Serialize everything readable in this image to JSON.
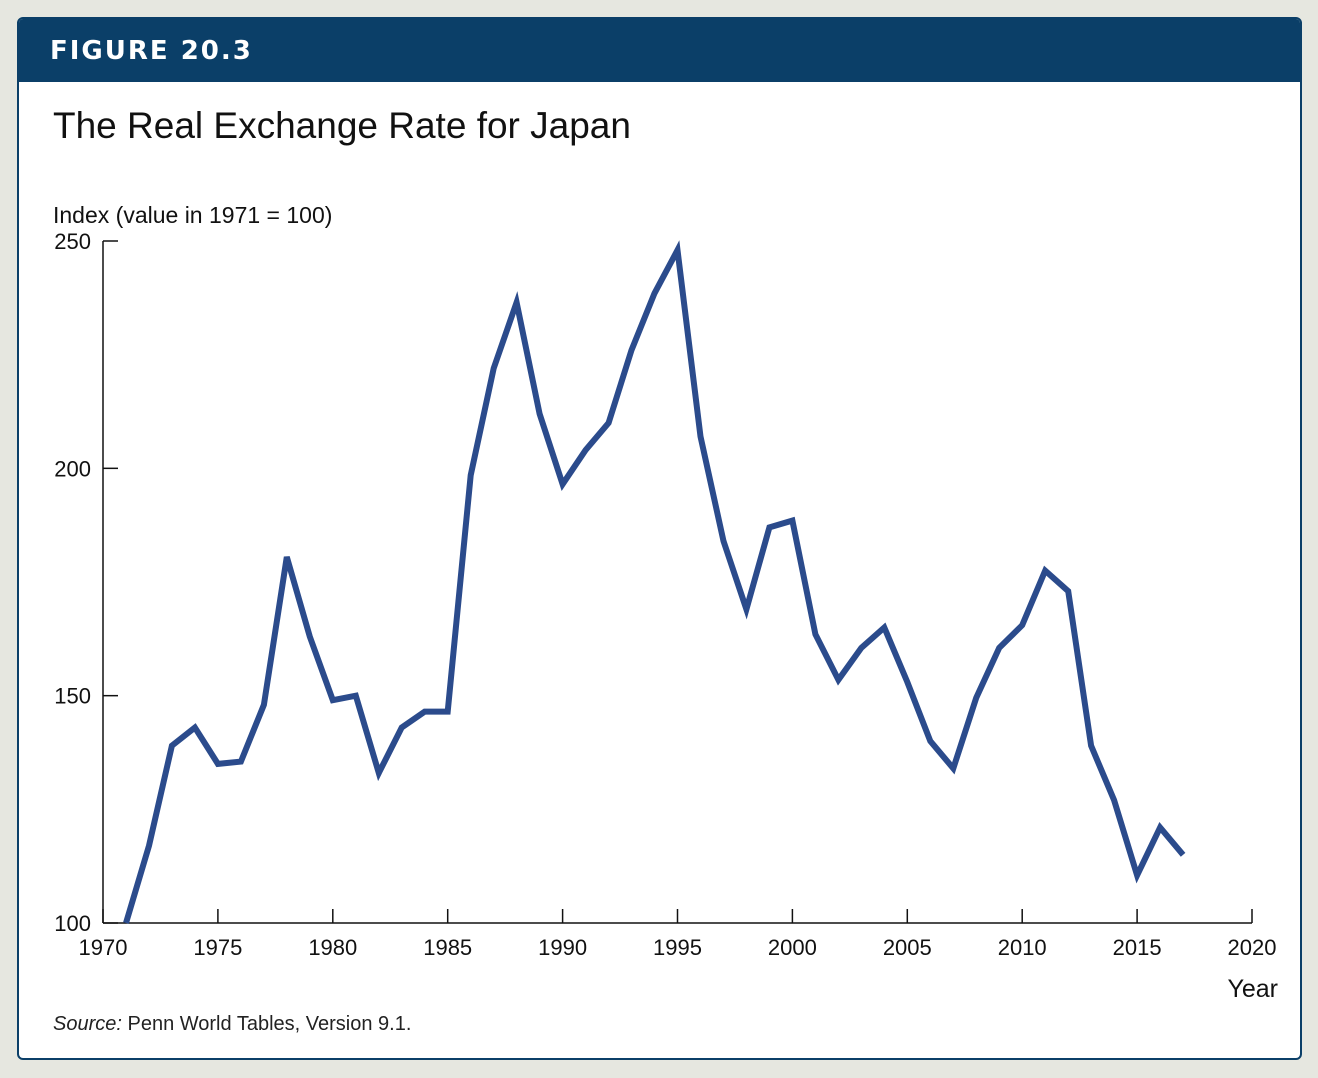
{
  "figure": {
    "label": "FIGURE 20.3",
    "source_prefix": "Source:",
    "source_text": " Penn World Tables, Version 9.1."
  },
  "chart_data": {
    "type": "line",
    "title": "The Real Exchange Rate for Japan",
    "ylabel": "Index (value in 1971 = 100)",
    "xlabel": "Year",
    "xlim": [
      1970,
      2020
    ],
    "ylim": [
      100,
      250
    ],
    "xticks": [
      1970,
      1975,
      1980,
      1985,
      1990,
      1995,
      2000,
      2005,
      2010,
      2015,
      2020
    ],
    "yticks": [
      100,
      150,
      200,
      250
    ],
    "grid": false,
    "line_color": "#2b4b8c",
    "series": [
      {
        "x": [
          1971,
          1972,
          1973,
          1974,
          1975,
          1976,
          1977,
          1978,
          1979,
          1980,
          1981,
          1982,
          1983,
          1984,
          1985,
          1986,
          1987,
          1988,
          1989,
          1990,
          1991,
          1992,
          1993,
          1994,
          1995,
          1996,
          1997,
          1998,
          1999,
          2000,
          2001,
          2002,
          2003,
          2004,
          2005,
          2006,
          2007,
          2008,
          2009,
          2010,
          2011,
          2012,
          2013,
          2014,
          2015,
          2016,
          2017
        ],
        "y": [
          100,
          117,
          139,
          143,
          135,
          135.5,
          148,
          180.5,
          163,
          149,
          150,
          133,
          143,
          146.5,
          146.5,
          198.5,
          222,
          236.5,
          212,
          196.5,
          204,
          210,
          226,
          238.5,
          248,
          207,
          184,
          169,
          187,
          188.5,
          163.5,
          153.5,
          160.5,
          165,
          153,
          140,
          134,
          149.5,
          160.5,
          165.5,
          177.5,
          173,
          139,
          127,
          110.5,
          121,
          115
        ]
      }
    ]
  }
}
